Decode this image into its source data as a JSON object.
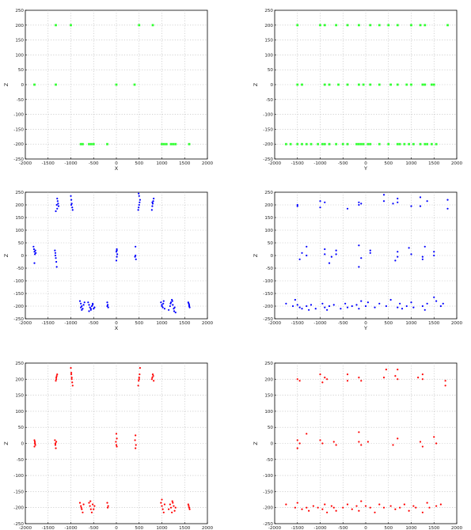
{
  "chart_data": [
    {
      "type": "scatter",
      "panel": "top-left",
      "color": "#33ff33",
      "marker": "dot",
      "xlabel": "X",
      "ylabel": "Z",
      "xlim": [
        -2000,
        2000
      ],
      "ylim": [
        -250,
        250
      ],
      "grid": true,
      "xticks": [
        -2000,
        -1500,
        -1000,
        -500,
        0,
        500,
        1000,
        1500,
        2000
      ],
      "yticks": [
        -250,
        -200,
        -150,
        -100,
        -50,
        0,
        50,
        100,
        150,
        200,
        250
      ],
      "series": [
        {
          "x": [
            -1800,
            -1330,
            -1330,
            -1000,
            -780,
            -740,
            -600,
            -550,
            -500,
            -200,
            0,
            400,
            500,
            800,
            1000,
            1050,
            1100,
            1200,
            1250,
            1300,
            1600
          ],
          "y": [
            0,
            0,
            200,
            200,
            -200,
            -200,
            -200,
            -200,
            -200,
            -200,
            0,
            0,
            200,
            200,
            -200,
            -200,
            -200,
            -200,
            -200,
            -200,
            -200
          ]
        }
      ]
    },
    {
      "type": "scatter",
      "panel": "top-right",
      "color": "#33ff33",
      "marker": "dot",
      "xlabel": "Y",
      "ylabel": "Z",
      "xlim": [
        -2000,
        2000
      ],
      "ylim": [
        -250,
        250
      ],
      "grid": true,
      "xticks": [
        -2000,
        -1500,
        -1000,
        -500,
        0,
        500,
        1000,
        1500,
        2000
      ],
      "yticks": [
        -250,
        -200,
        -150,
        -100,
        -50,
        0,
        50,
        100,
        150,
        200,
        250
      ],
      "series": [
        {
          "x": [
            -1750,
            -1650,
            -1500,
            -1400,
            -1300,
            -1200,
            -1050,
            -950,
            -900,
            -800,
            -650,
            -500,
            -400,
            -200,
            -150,
            -100,
            -50,
            50,
            100,
            300,
            500,
            700,
            750,
            850,
            950,
            1050,
            1200,
            1300,
            1350,
            1450,
            1550,
            -1500,
            -1400,
            -900,
            -800,
            -600,
            -400,
            -150,
            -50,
            100,
            300,
            550,
            700,
            900,
            1000,
            1250,
            1300,
            1450,
            1500,
            -1500,
            -1000,
            -900,
            -650,
            -400,
            -150,
            100,
            300,
            500,
            700,
            1000,
            1200,
            1300,
            1800
          ],
          "y": [
            -200,
            -200,
            -200,
            -200,
            -200,
            -200,
            -200,
            -200,
            -200,
            -200,
            -200,
            -200,
            -200,
            -200,
            -200,
            -200,
            -200,
            -200,
            -200,
            -200,
            -200,
            -200,
            -200,
            -200,
            -200,
            -200,
            -200,
            -200,
            -200,
            -200,
            -200,
            0,
            0,
            0,
            0,
            0,
            0,
            0,
            0,
            0,
            0,
            0,
            0,
            0,
            0,
            0,
            0,
            0,
            0,
            200,
            200,
            200,
            200,
            200,
            200,
            200,
            200,
            200,
            200,
            200,
            200,
            200,
            200
          ]
        }
      ]
    },
    {
      "type": "scatter",
      "panel": "middle-left",
      "color": "#0000ff",
      "marker": "point",
      "xlabel": "X",
      "ylabel": "Z",
      "xlim": [
        -2000,
        2000
      ],
      "ylim": [
        -250,
        250
      ],
      "grid": true,
      "xticks": [
        -2000,
        -1500,
        -1000,
        -500,
        0,
        500,
        1000,
        1500,
        2000
      ],
      "yticks": [
        -250,
        -200,
        -150,
        -100,
        -50,
        0,
        50,
        100,
        150,
        200,
        250
      ],
      "series": [
        {
          "x": [
            -1820,
            -1810,
            -1800,
            -1790,
            -1780,
            -1770,
            -1800,
            -1350,
            -1340,
            -1330,
            -1320,
            -1310,
            -1340,
            -1330,
            -1300,
            -1290,
            -1280,
            -1270,
            -1300,
            -1310,
            -1000,
            -990,
            -980,
            -970,
            -960,
            -990,
            -800,
            -780,
            -760,
            -740,
            -720,
            -700,
            -780,
            -760,
            -620,
            -600,
            -580,
            -560,
            -540,
            -520,
            -500,
            -480,
            -600,
            -560,
            -520,
            -200,
            -190,
            -180,
            -200,
            10,
            0,
            20,
            10,
            0,
            10,
            420,
            410,
            430,
            420,
            480,
            490,
            500,
            510,
            520,
            500,
            490,
            780,
            790,
            800,
            810,
            820,
            790,
            980,
            1000,
            1020,
            1040,
            1060,
            1000,
            1030,
            1150,
            1180,
            1200,
            1220,
            1240,
            1260,
            1280,
            1300,
            1190,
            1230,
            1270,
            1580,
            1600,
            1610,
            1590,
            1600
          ],
          "y": [
            35,
            25,
            15,
            5,
            20,
            10,
            -30,
            20,
            0,
            -10,
            -25,
            -45,
            10,
            175,
            225,
            215,
            205,
            195,
            185,
            200,
            235,
            220,
            205,
            190,
            180,
            200,
            -180,
            -190,
            -200,
            -210,
            -195,
            -185,
            -205,
            -215,
            -185,
            -195,
            -205,
            -215,
            -200,
            -190,
            -210,
            -205,
            -220,
            -210,
            -195,
            -185,
            -195,
            -205,
            -200,
            25,
            15,
            5,
            -5,
            -20,
            20,
            35,
            -5,
            -15,
            0,
            180,
            190,
            200,
            210,
            220,
            235,
            245,
            180,
            195,
            205,
            215,
            225,
            210,
            -185,
            -195,
            -205,
            -180,
            -210,
            -200,
            -190,
            -215,
            -200,
            -185,
            -175,
            -195,
            -210,
            -205,
            -225,
            -190,
            -180,
            -220,
            -185,
            -195,
            -205,
            -190,
            -200
          ]
        }
      ]
    },
    {
      "type": "scatter",
      "panel": "middle-right",
      "color": "#0000ff",
      "marker": "point",
      "xlabel": "Y",
      "ylabel": "Z",
      "xlim": [
        -2000,
        2000
      ],
      "ylim": [
        -250,
        250
      ],
      "grid": true,
      "xticks": [
        -2000,
        -1500,
        -1000,
        -500,
        0,
        500,
        1000,
        1500,
        2000
      ],
      "yticks": [
        -250,
        -200,
        -150,
        -100,
        -50,
        0,
        50,
        100,
        150,
        200,
        250
      ],
      "series": [
        {
          "x": [
            -1750,
            -1600,
            -1550,
            -1500,
            -1450,
            -1400,
            -1300,
            -1250,
            -1200,
            -1100,
            -950,
            -900,
            -850,
            -800,
            -700,
            -550,
            -450,
            -400,
            -300,
            -200,
            -150,
            -100,
            0,
            50,
            200,
            300,
            450,
            550,
            700,
            750,
            800,
            900,
            1000,
            1050,
            1250,
            1300,
            1350,
            1500,
            1550,
            1650,
            1700,
            -1450,
            -1400,
            -1300,
            -1300,
            -900,
            -900,
            -800,
            -750,
            -650,
            -650,
            -150,
            -150,
            -100,
            100,
            100,
            650,
            700,
            700,
            950,
            1000,
            1250,
            1250,
            1300,
            1500,
            1500,
            -1500,
            -1500,
            -1000,
            -1000,
            -900,
            -400,
            -150,
            -150,
            -100,
            400,
            400,
            600,
            700,
            700,
            1000,
            1200,
            1200,
            1350,
            1800,
            1800
          ],
          "y": [
            -190,
            -200,
            -175,
            -195,
            -205,
            -210,
            -200,
            -215,
            -195,
            -210,
            -190,
            -205,
            -215,
            -200,
            -195,
            -210,
            -190,
            -205,
            -200,
            -195,
            -210,
            -180,
            -200,
            -185,
            -205,
            -190,
            -200,
            -175,
            -205,
            -190,
            -210,
            -200,
            -185,
            -205,
            -200,
            -215,
            -190,
            -165,
            -180,
            -200,
            -190,
            -15,
            10,
            35,
            0,
            25,
            5,
            -30,
            -5,
            20,
            5,
            -45,
            40,
            -10,
            20,
            10,
            -20,
            15,
            -5,
            30,
            5,
            -15,
            -5,
            35,
            0,
            15,
            195,
            200,
            215,
            190,
            210,
            185,
            200,
            210,
            205,
            215,
            240,
            205,
            225,
            210,
            195,
            195,
            230,
            215,
            185,
            220
          ]
        }
      ]
    },
    {
      "type": "scatter",
      "panel": "bottom-left",
      "color": "#ff0000",
      "marker": "point",
      "xlabel": "",
      "ylabel": "Z",
      "xlim": [
        -2000,
        2000
      ],
      "ylim": [
        -250,
        250
      ],
      "grid": true,
      "xticks": [
        -2000,
        -1500,
        -1000,
        -500,
        0,
        500,
        1000,
        1500,
        2000
      ],
      "yticks": [
        -250,
        -200,
        -150,
        -100,
        -50,
        0,
        50,
        100,
        150,
        200,
        250
      ],
      "series": [
        {
          "x": [
            -1800,
            -1790,
            -1780,
            -1800,
            -1790,
            -1350,
            -1340,
            -1330,
            -1320,
            -1340,
            -1330,
            -1320,
            -1310,
            -1300,
            -1320,
            -1000,
            -990,
            -980,
            -970,
            -960,
            -990,
            -980,
            -800,
            -780,
            -760,
            -740,
            -720,
            -770,
            -600,
            -580,
            -560,
            -540,
            -520,
            -500,
            -480,
            -570,
            -200,
            -190,
            -180,
            0,
            10,
            -10,
            0,
            10,
            420,
            410,
            430,
            420,
            480,
            490,
            500,
            510,
            520,
            500,
            780,
            790,
            800,
            810,
            820,
            980,
            1000,
            1020,
            1040,
            1060,
            1000,
            1150,
            1180,
            1200,
            1220,
            1240,
            1260,
            1280,
            1300,
            1230,
            1580,
            1600,
            1610,
            1590
          ],
          "y": [
            10,
            0,
            -5,
            -10,
            5,
            10,
            0,
            -15,
            5,
            -5,
            195,
            205,
            210,
            215,
            200,
            235,
            220,
            205,
            190,
            180,
            215,
            200,
            -185,
            -195,
            -205,
            -215,
            -190,
            -200,
            -185,
            -195,
            -205,
            -215,
            -190,
            -205,
            -195,
            -180,
            -185,
            -200,
            -195,
            30,
            15,
            5,
            -5,
            -10,
            25,
            10,
            -5,
            -15,
            180,
            195,
            205,
            215,
            235,
            200,
            200,
            205,
            215,
            210,
            195,
            -185,
            -195,
            -205,
            -215,
            -190,
            -175,
            -205,
            -190,
            -200,
            -215,
            -185,
            -195,
            -210,
            -200,
            -180,
            -190,
            -200,
            -205,
            -195
          ]
        }
      ]
    },
    {
      "type": "scatter",
      "panel": "bottom-right",
      "color": "#ff0000",
      "marker": "point",
      "xlabel": "",
      "ylabel": "Z",
      "xlim": [
        -2000,
        2000
      ],
      "ylim": [
        -250,
        250
      ],
      "grid": true,
      "xticks": [
        -2000,
        -1500,
        -1000,
        -500,
        0,
        500,
        1000,
        1500,
        2000
      ],
      "yticks": [
        -250,
        -200,
        -150,
        -100,
        -50,
        0,
        50,
        100,
        150,
        200,
        250
      ],
      "series": [
        {
          "x": [
            -1750,
            -1550,
            -1500,
            -1400,
            -1300,
            -1250,
            -1150,
            -1050,
            -950,
            -900,
            -850,
            -750,
            -700,
            -650,
            -500,
            -400,
            -300,
            -200,
            -150,
            -100,
            0,
            100,
            200,
            300,
            400,
            550,
            650,
            750,
            850,
            950,
            1050,
            1100,
            1250,
            1350,
            1400,
            1550,
            1650,
            -1500,
            -1500,
            -1450,
            -1300,
            -1000,
            -950,
            -700,
            -650,
            -150,
            -150,
            -100,
            50,
            600,
            700,
            1200,
            1250,
            1500,
            1550,
            -1500,
            -1450,
            -1000,
            -950,
            -900,
            -850,
            -400,
            -400,
            -150,
            -100,
            400,
            450,
            650,
            700,
            700,
            1150,
            1250,
            1250,
            1750,
            1750
          ],
          "y": [
            -190,
            -200,
            -185,
            -205,
            -200,
            -210,
            -195,
            -200,
            -205,
            -190,
            -215,
            -195,
            -200,
            -210,
            -200,
            -190,
            -205,
            -195,
            -210,
            -180,
            -195,
            -200,
            -215,
            -190,
            -200,
            -195,
            -205,
            -200,
            -190,
            -210,
            -195,
            -200,
            -215,
            -185,
            -200,
            -195,
            -190,
            10,
            -15,
            0,
            30,
            10,
            0,
            5,
            -5,
            35,
            5,
            -5,
            5,
            -5,
            15,
            5,
            -10,
            20,
            0,
            200,
            195,
            215,
            190,
            205,
            200,
            215,
            195,
            205,
            195,
            205,
            230,
            210,
            230,
            200,
            205,
            215,
            200,
            195,
            180
          ]
        }
      ]
    }
  ]
}
